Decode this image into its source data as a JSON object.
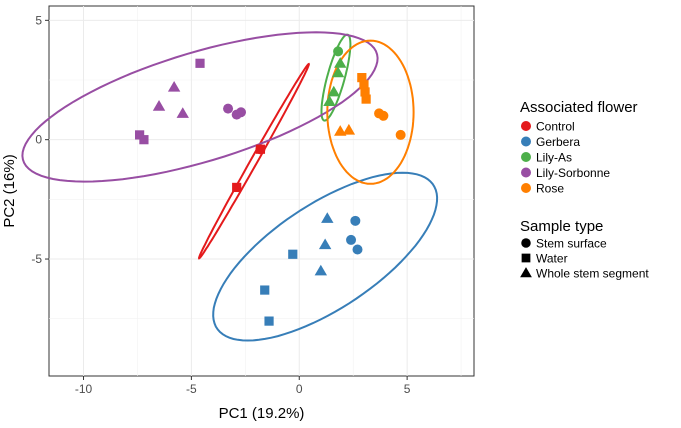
{
  "chart_data": {
    "type": "scatter",
    "xlabel": "PC1 (19.2%)",
    "ylabel": "PC2 (16%)",
    "xlim": [
      -11.6,
      8.1
    ],
    "ylim": [
      -9.9,
      5.6
    ],
    "x_ticks": [
      -10,
      -5,
      0,
      5
    ],
    "y_ticks": [
      -5,
      0,
      5
    ],
    "x_tick_labels": [
      "-10",
      "-5",
      "0",
      "5"
    ],
    "y_tick_labels": [
      "-5",
      "0",
      "5"
    ],
    "grid": true,
    "legend_position": "right",
    "color_legend": {
      "title": "Associated flower",
      "entries": [
        {
          "name": "Control",
          "color": "#e41a1c"
        },
        {
          "name": "Gerbera",
          "color": "#377eb8"
        },
        {
          "name": "Lily-As",
          "color": "#4daf4a"
        },
        {
          "name": "Lily-Sorbonne",
          "color": "#984ea3"
        },
        {
          "name": "Rose",
          "color": "#ff7f00"
        }
      ]
    },
    "shape_legend": {
      "title": "Sample type",
      "entries": [
        {
          "name": "Stem surface",
          "shape": "circle"
        },
        {
          "name": "Water",
          "shape": "square"
        },
        {
          "name": "Whole stem segment",
          "shape": "triangle"
        }
      ]
    },
    "series": [
      {
        "name": "Control",
        "color": "#e41a1c",
        "points": [
          {
            "x": -2.9,
            "y": -2.0,
            "shape": "square"
          },
          {
            "x": -1.8,
            "y": -0.4,
            "shape": "square"
          },
          {
            "x": -1.8,
            "y": -0.4,
            "shape": "circle"
          }
        ],
        "ellipse": {
          "cx": -2.1,
          "cy": -0.9,
          "rx": 4.8,
          "ry": 0.15,
          "angle": 58
        }
      },
      {
        "name": "Gerbera",
        "color": "#377eb8",
        "points": [
          {
            "x": -0.3,
            "y": -4.8,
            "shape": "square"
          },
          {
            "x": -1.6,
            "y": -6.3,
            "shape": "square"
          },
          {
            "x": -1.4,
            "y": -7.6,
            "shape": "square"
          },
          {
            "x": 1.3,
            "y": -3.3,
            "shape": "triangle"
          },
          {
            "x": 1.2,
            "y": -4.4,
            "shape": "triangle"
          },
          {
            "x": 1.0,
            "y": -5.5,
            "shape": "triangle"
          },
          {
            "x": 2.6,
            "y": -3.4,
            "shape": "circle"
          },
          {
            "x": 2.4,
            "y": -4.2,
            "shape": "circle"
          },
          {
            "x": 2.7,
            "y": -4.6,
            "shape": "circle"
          }
        ],
        "ellipse": {
          "cx": 1.2,
          "cy": -4.9,
          "rx": 5.85,
          "ry": 2.25,
          "angle": 30
        }
      },
      {
        "name": "Lily-As",
        "color": "#4daf4a",
        "points": [
          {
            "x": 1.8,
            "y": 3.7,
            "shape": "circle"
          },
          {
            "x": 1.9,
            "y": 3.2,
            "shape": "triangle"
          },
          {
            "x": 1.8,
            "y": 2.8,
            "shape": "triangle"
          },
          {
            "x": 1.6,
            "y": 2.0,
            "shape": "triangle"
          },
          {
            "x": 1.4,
            "y": 1.6,
            "shape": "triangle"
          }
        ],
        "ellipse": {
          "cx": 1.7,
          "cy": 2.6,
          "rx": 1.88,
          "ry": 0.4,
          "angle": 73
        }
      },
      {
        "name": "Lily-Sorbonne",
        "color": "#984ea3",
        "points": [
          {
            "x": -4.6,
            "y": 3.2,
            "shape": "square"
          },
          {
            "x": -7.4,
            "y": 0.2,
            "shape": "square"
          },
          {
            "x": -7.2,
            "y": 0.0,
            "shape": "square"
          },
          {
            "x": -5.8,
            "y": 2.2,
            "shape": "triangle"
          },
          {
            "x": -6.5,
            "y": 1.4,
            "shape": "triangle"
          },
          {
            "x": -5.4,
            "y": 1.1,
            "shape": "triangle"
          },
          {
            "x": -3.3,
            "y": 1.3,
            "shape": "circle"
          },
          {
            "x": -2.9,
            "y": 1.05,
            "shape": "circle"
          },
          {
            "x": -2.7,
            "y": 1.15,
            "shape": "circle"
          }
        ],
        "ellipse": {
          "cx": -4.6,
          "cy": 1.37,
          "rx": 8.5,
          "ry": 2.3,
          "angle": 15
        }
      },
      {
        "name": "Rose",
        "color": "#ff7f00",
        "points": [
          {
            "x": 2.9,
            "y": 2.6,
            "shape": "square"
          },
          {
            "x": 3.0,
            "y": 2.3,
            "shape": "square"
          },
          {
            "x": 3.05,
            "y": 2.0,
            "shape": "square"
          },
          {
            "x": 3.1,
            "y": 1.7,
            "shape": "square"
          },
          {
            "x": 3.7,
            "y": 1.1,
            "shape": "circle"
          },
          {
            "x": 3.9,
            "y": 1.0,
            "shape": "circle"
          },
          {
            "x": 4.7,
            "y": 0.2,
            "shape": "circle"
          },
          {
            "x": 1.9,
            "y": 0.35,
            "shape": "triangle"
          },
          {
            "x": 2.3,
            "y": 0.4,
            "shape": "triangle"
          }
        ],
        "ellipse": {
          "cx": 3.3,
          "cy": 1.15,
          "rx": 2.0,
          "ry": 3.0,
          "angle": 0
        }
      }
    ]
  }
}
